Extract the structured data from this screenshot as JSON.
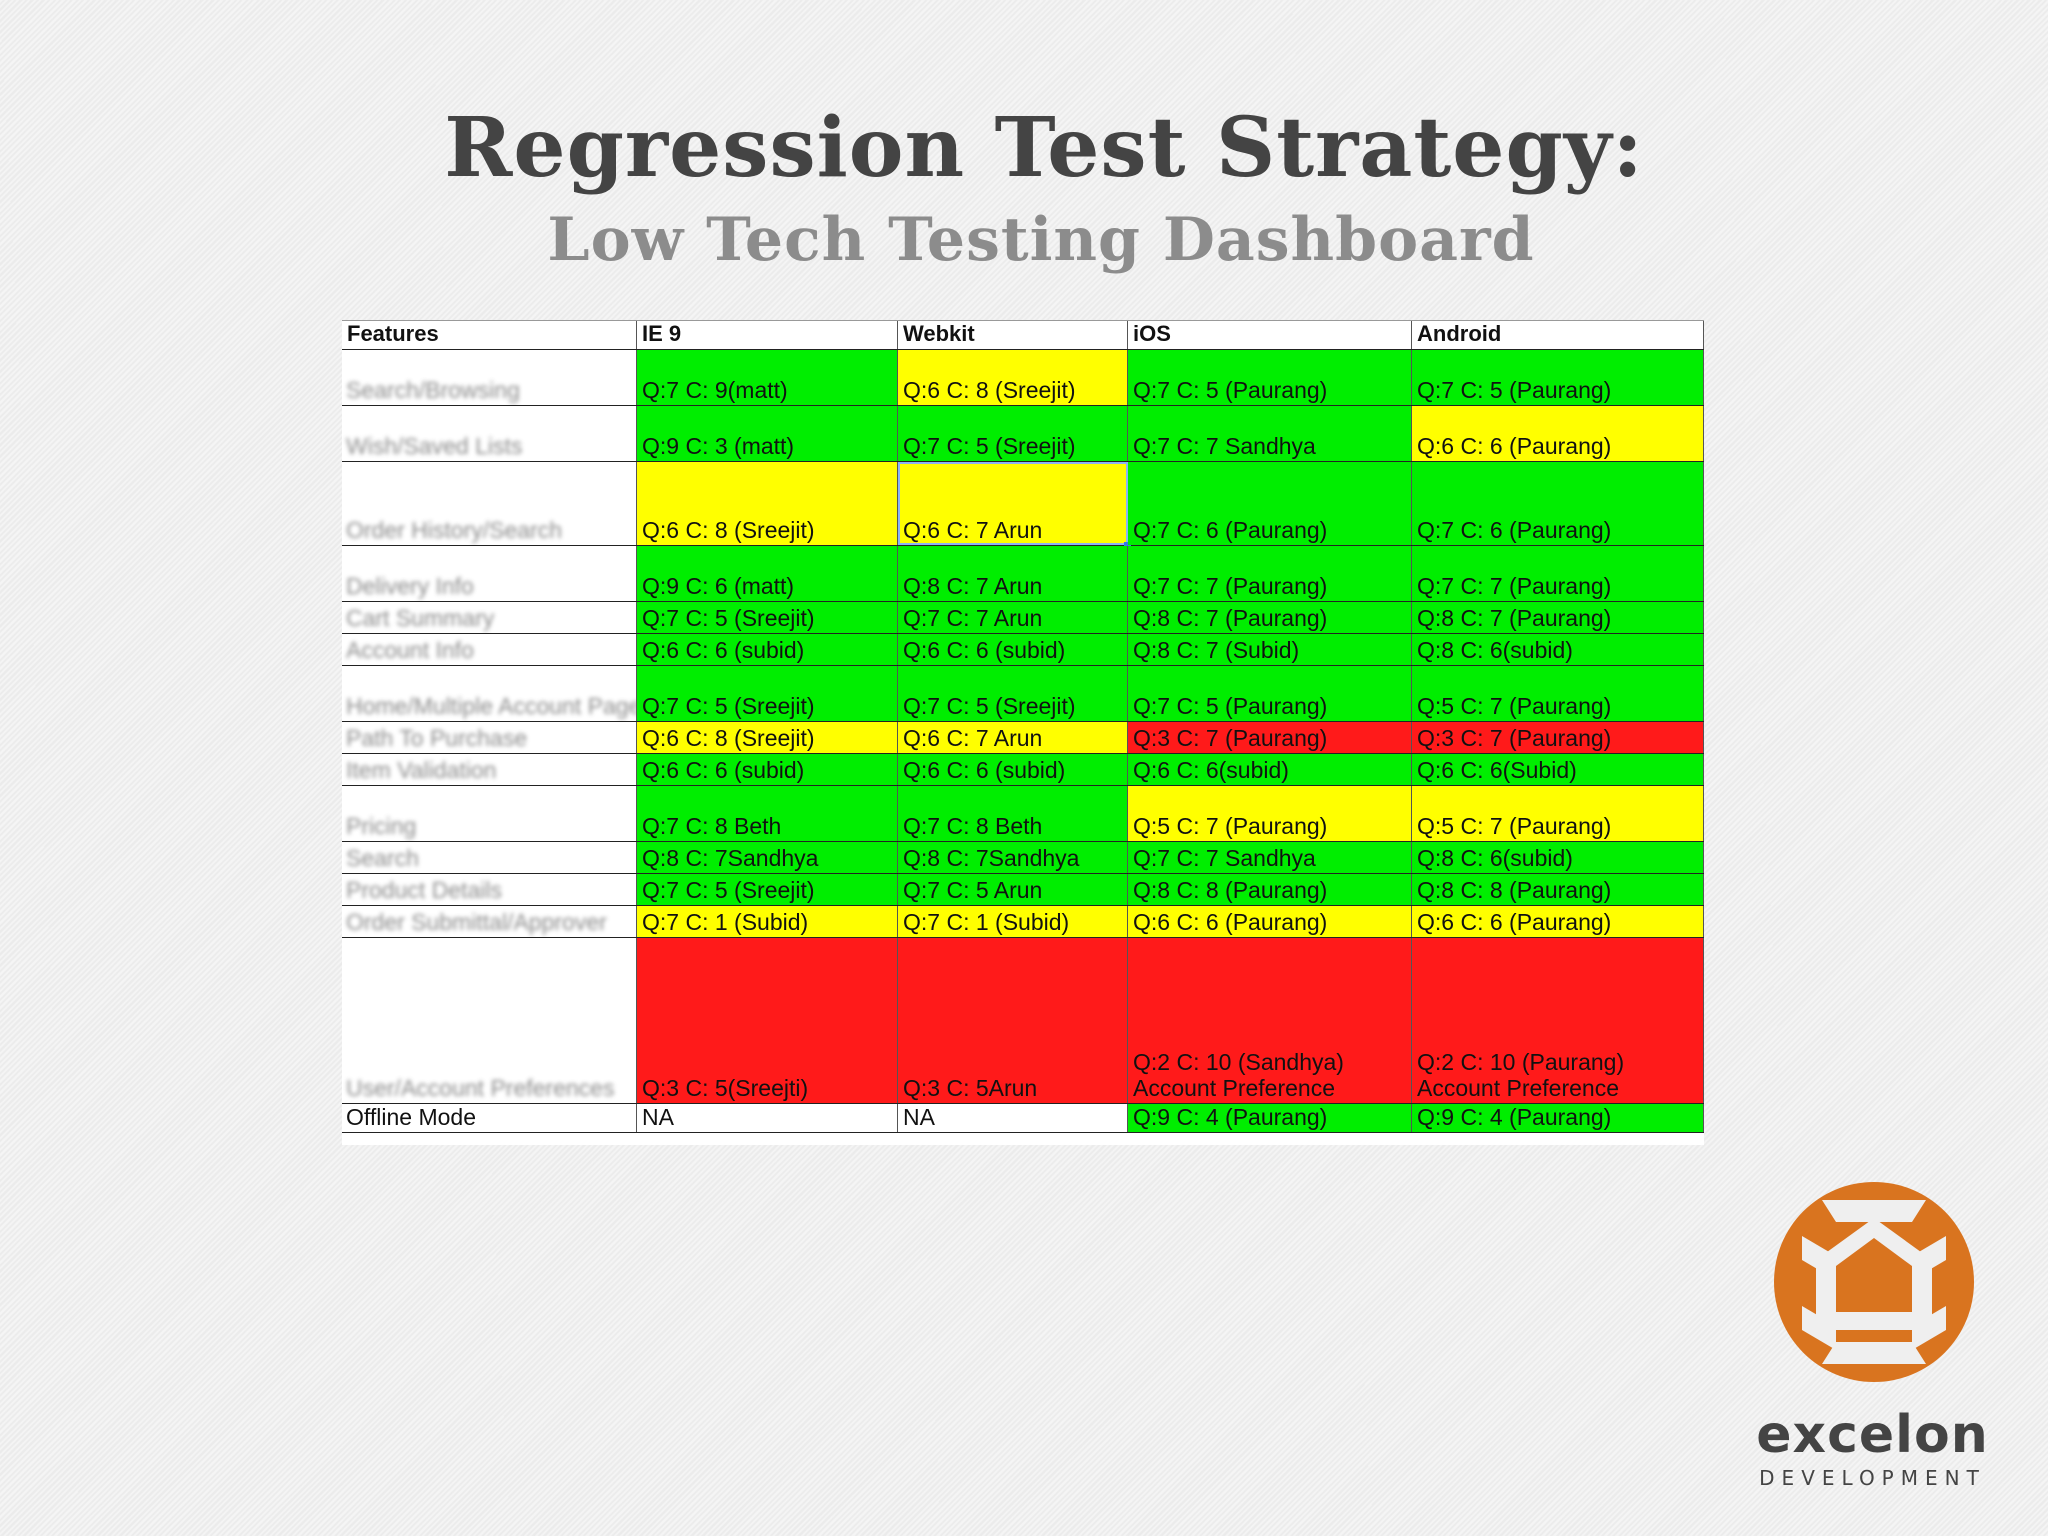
{
  "slide": {
    "title": "Regression Test Strategy:",
    "subtitle": "Low Tech Testing Dashboard"
  },
  "table": {
    "headers": [
      "Features",
      "IE 9",
      "Webkit",
      "iOS",
      "Android"
    ],
    "rows": [
      {
        "feature": "Search/Browsing",
        "cells": [
          {
            "text": "Q:7 C: 9(matt)",
            "status": "green"
          },
          {
            "text": "Q:6 C: 8 (Sreejit)",
            "status": "yellow"
          },
          {
            "text": "Q:7 C: 5 (Paurang)",
            "status": "green"
          },
          {
            "text": "Q:7 C: 5 (Paurang)",
            "status": "green"
          }
        ]
      },
      {
        "feature": "Wish/Saved Lists",
        "cells": [
          {
            "text": "Q:9 C: 3 (matt)",
            "status": "green"
          },
          {
            "text": "Q:7 C: 5 (Sreejit)",
            "status": "green"
          },
          {
            "text": "Q:7 C: 7 Sandhya",
            "status": "green"
          },
          {
            "text": "Q:6 C: 6 (Paurang)",
            "status": "yellow"
          }
        ]
      },
      {
        "feature": "Order History/Search",
        "cells": [
          {
            "text": "Q:6 C: 8 (Sreejit)",
            "status": "yellow"
          },
          {
            "text": "Q:6 C: 7 Arun",
            "status": "yellow"
          },
          {
            "text": "Q:7 C: 6 (Paurang)",
            "status": "green"
          },
          {
            "text": "Q:7 C: 6 (Paurang)",
            "status": "green"
          }
        ]
      },
      {
        "feature": "Delivery Info",
        "cells": [
          {
            "text": "Q:9 C: 6 (matt)",
            "status": "green"
          },
          {
            "text": "Q:8 C: 7 Arun",
            "status": "green"
          },
          {
            "text": "Q:7 C: 7 (Paurang)",
            "status": "green"
          },
          {
            "text": "Q:7 C: 7 (Paurang)",
            "status": "green"
          }
        ]
      },
      {
        "feature": "Cart Summary",
        "cells": [
          {
            "text": "Q:7 C: 5 (Sreejit)",
            "status": "green"
          },
          {
            "text": "Q:7 C: 7 Arun",
            "status": "green"
          },
          {
            "text": "Q:8 C: 7 (Paurang)",
            "status": "green"
          },
          {
            "text": "Q:8 C: 7 (Paurang)",
            "status": "green"
          }
        ]
      },
      {
        "feature": "Account Info",
        "cells": [
          {
            "text": "Q:6 C: 6 (subid)",
            "status": "green"
          },
          {
            "text": "Q:6 C: 6 (subid)",
            "status": "green"
          },
          {
            "text": "Q:8 C: 7 (Subid)",
            "status": "green"
          },
          {
            "text": "Q:8 C: 6(subid)",
            "status": "green"
          }
        ]
      },
      {
        "feature": "Home/Multiple Account Page/Global Nav",
        "cells": [
          {
            "text": "Q:7 C: 5 (Sreejit)",
            "status": "green"
          },
          {
            "text": "Q:7 C: 5 (Sreejit)",
            "status": "green"
          },
          {
            "text": "Q:7 C: 5 (Paurang)",
            "status": "green"
          },
          {
            "text": "Q:5 C: 7 (Paurang)",
            "status": "green"
          }
        ]
      },
      {
        "feature": "Path To Purchase",
        "cells": [
          {
            "text": "Q:6 C: 8 (Sreejit)",
            "status": "yellow"
          },
          {
            "text": "Q:6 C: 7 Arun",
            "status": "yellow"
          },
          {
            "text": "Q:3 C: 7 (Paurang)",
            "status": "red"
          },
          {
            "text": "Q:3 C: 7 (Paurang)",
            "status": "red"
          }
        ]
      },
      {
        "feature": "Item Validation",
        "cells": [
          {
            "text": "Q:6 C: 6 (subid)",
            "status": "green"
          },
          {
            "text": "Q:6 C: 6 (subid)",
            "status": "green"
          },
          {
            "text": "Q:6 C: 6(subid)",
            "status": "green"
          },
          {
            "text": "Q:6 C: 6(Subid)",
            "status": "green"
          }
        ]
      },
      {
        "feature": "Pricing",
        "cells": [
          {
            "text": "Q:7 C: 8 Beth",
            "status": "green"
          },
          {
            "text": "Q:7 C: 8 Beth",
            "status": "green"
          },
          {
            "text": "Q:5 C: 7 (Paurang)",
            "status": "yellow"
          },
          {
            "text": "Q:5 C: 7 (Paurang)",
            "status": "yellow"
          }
        ]
      },
      {
        "feature": "Search",
        "cells": [
          {
            "text": "Q:8 C: 7Sandhya",
            "status": "green"
          },
          {
            "text": "Q:8 C: 7Sandhya",
            "status": "green"
          },
          {
            "text": "Q:7 C: 7 Sandhya",
            "status": "green"
          },
          {
            "text": "Q:8 C: 6(subid)",
            "status": "green"
          }
        ]
      },
      {
        "feature": "Product Details",
        "cells": [
          {
            "text": "Q:7 C: 5 (Sreejit)",
            "status": "green"
          },
          {
            "text": "Q:7 C: 5 Arun",
            "status": "green"
          },
          {
            "text": "Q:8 C: 8 (Paurang)",
            "status": "green"
          },
          {
            "text": "Q:8 C: 8 (Paurang)",
            "status": "green"
          }
        ]
      },
      {
        "feature": "Order Submittal/Approver",
        "cells": [
          {
            "text": "Q:7 C: 1 (Subid)",
            "status": "yellow"
          },
          {
            "text": "Q:7 C: 1 (Subid)",
            "status": "yellow"
          },
          {
            "text": "Q:6 C: 6 (Paurang)",
            "status": "yellow"
          },
          {
            "text": "Q:6 C: 6 (Paurang)",
            "status": "yellow"
          }
        ]
      },
      {
        "feature": "User/Account Preferences",
        "cells": [
          {
            "text": "Q:3 C: 5(Sreejti)",
            "status": "red"
          },
          {
            "text": "Q:3 C: 5Arun",
            "status": "red"
          },
          {
            "text": "Q:2 C: 10 (Sandhya)\nAccount Preference",
            "status": "red"
          },
          {
            "text": "Q:2 C: 10 (Paurang)\nAccount Preference",
            "status": "red"
          }
        ]
      },
      {
        "feature": "Offline Mode",
        "cells": [
          {
            "text": "NA",
            "status": "white"
          },
          {
            "text": "NA",
            "status": "white"
          },
          {
            "text": "Q:9 C: 4 (Paurang)",
            "status": "green"
          },
          {
            "text": "Q:9 C: 4 (Paurang)",
            "status": "green"
          }
        ]
      }
    ]
  },
  "status_colors": {
    "green": "#00ee00",
    "yellow": "#ffff00",
    "red": "#ff1a1a",
    "white": "#ffffff"
  },
  "brand": {
    "name": "excelon",
    "tagline": "DEVELOPMENT",
    "logo_color": "#d9741f"
  }
}
